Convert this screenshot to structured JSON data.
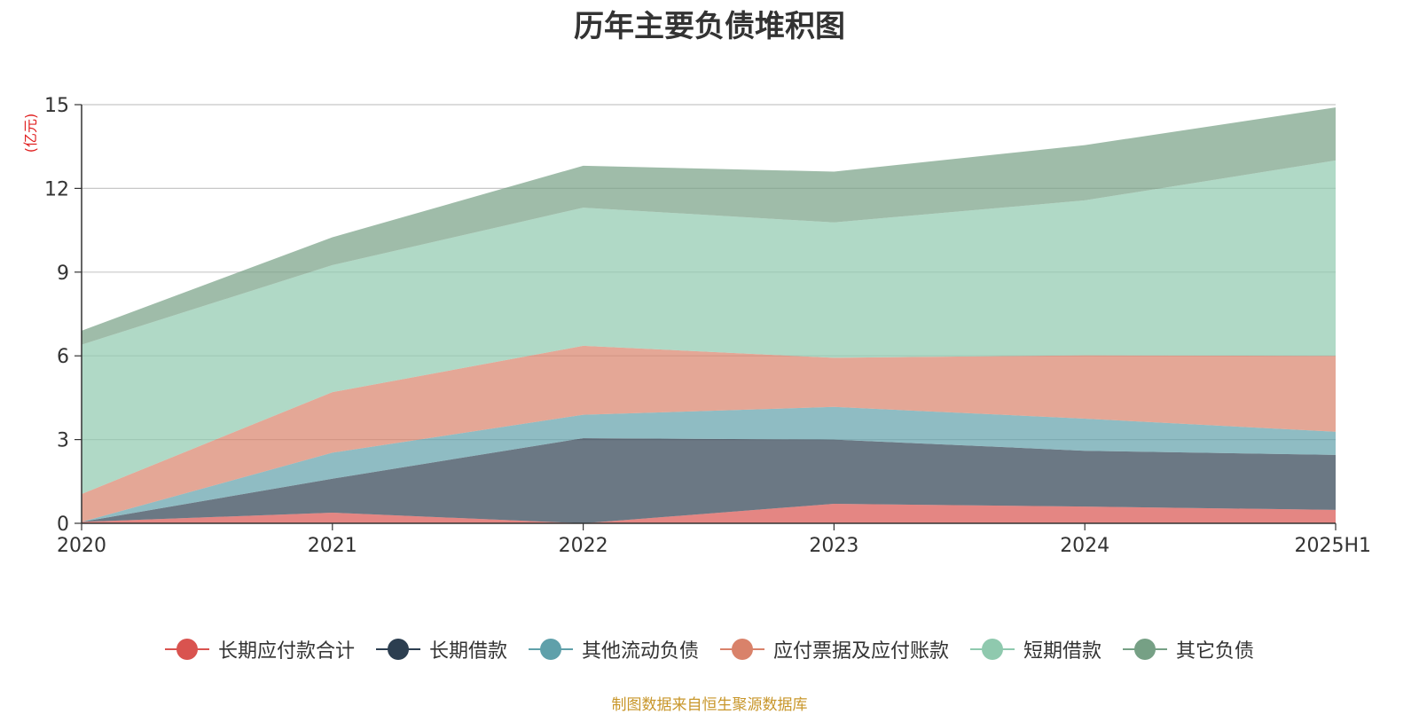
{
  "title": "历年主要负债堆积图",
  "unit": "(亿元)",
  "source": "制图数据来自恒生聚源数据库",
  "chart_data": {
    "type": "area",
    "stacked": true,
    "categories": [
      "2020",
      "2021",
      "2022",
      "2023",
      "2024",
      "2025H1"
    ],
    "ylim": [
      0,
      15
    ],
    "yticks": [
      0,
      3,
      6,
      9,
      12,
      15
    ],
    "grid": true,
    "legend_position": "bottom",
    "series": [
      {
        "name": "长期应付款合计",
        "color": "#d9534f",
        "values": [
          0.05,
          0.38,
          0.0,
          0.7,
          0.6,
          0.48
        ]
      },
      {
        "name": "长期借款",
        "color": "#2c3e50",
        "values": [
          0.0,
          1.22,
          3.05,
          2.3,
          2.0,
          1.97
        ]
      },
      {
        "name": "其他流动负债",
        "color": "#5fa0aa",
        "values": [
          0.0,
          0.93,
          0.84,
          1.17,
          1.15,
          0.83
        ]
      },
      {
        "name": "应付票据及应付账款",
        "color": "#d9826a",
        "values": [
          1.0,
          2.17,
          2.47,
          1.76,
          2.27,
          2.72
        ]
      },
      {
        "name": "短期借款",
        "color": "#8fc9ae",
        "values": [
          5.35,
          4.55,
          4.95,
          4.85,
          5.55,
          7.0
        ]
      },
      {
        "name": "其它负债",
        "color": "#76a085",
        "values": [
          0.5,
          1.0,
          1.5,
          1.82,
          1.98,
          1.9
        ]
      }
    ]
  }
}
